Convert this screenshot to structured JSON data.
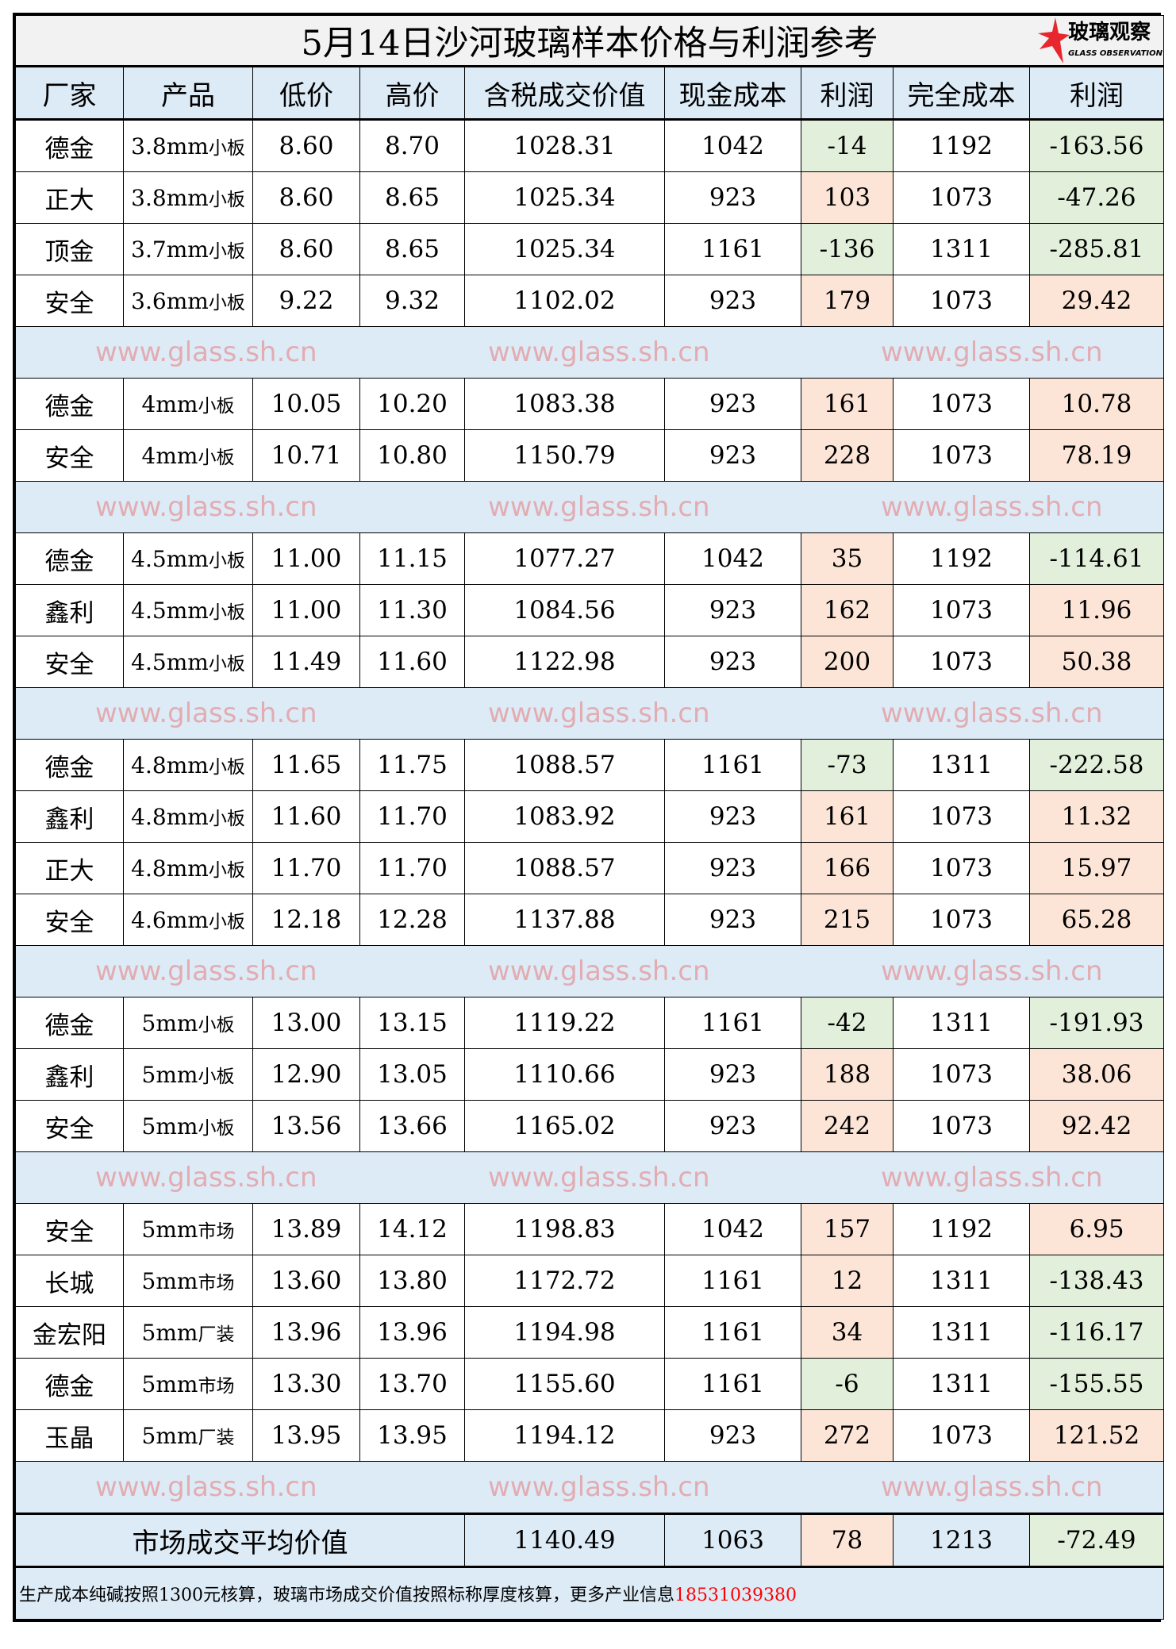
{
  "title": "5月14日沙河玻璃样本价格与利润参考",
  "logo": {
    "cn": "玻璃观察",
    "en": "GLASS OBSERVATION"
  },
  "headers": [
    "厂家",
    "产品",
    "低价",
    "高价",
    "含税成交价值",
    "现金成本",
    "利润",
    "完全成本",
    "利润"
  ],
  "groups": [
    [
      [
        "德金",
        "3.8mm",
        "小板",
        "8.60",
        "8.70",
        "1028.31",
        "1042",
        "-14",
        "1192",
        "-163.56"
      ],
      [
        "正大",
        "3.8mm",
        "小板",
        "8.60",
        "8.65",
        "1025.34",
        "923",
        "103",
        "1073",
        "-47.26"
      ],
      [
        "顶金",
        "3.7mm",
        "小板",
        "8.60",
        "8.65",
        "1025.34",
        "1161",
        "-136",
        "1311",
        "-285.81"
      ],
      [
        "安全",
        "3.6mm",
        "小板",
        "9.22",
        "9.32",
        "1102.02",
        "923",
        "179",
        "1073",
        "29.42"
      ]
    ],
    [
      [
        "德金",
        "4mm",
        "小板",
        "10.05",
        "10.20",
        "1083.38",
        "923",
        "161",
        "1073",
        "10.78"
      ],
      [
        "安全",
        "4mm",
        "小板",
        "10.71",
        "10.80",
        "1150.79",
        "923",
        "228",
        "1073",
        "78.19"
      ]
    ],
    [
      [
        "德金",
        "4.5mm",
        "小板",
        "11.00",
        "11.15",
        "1077.27",
        "1042",
        "35",
        "1192",
        "-114.61"
      ],
      [
        "鑫利",
        "4.5mm",
        "小板",
        "11.00",
        "11.30",
        "1084.56",
        "923",
        "162",
        "1073",
        "11.96"
      ],
      [
        "安全",
        "4.5mm",
        "小板",
        "11.49",
        "11.60",
        "1122.98",
        "923",
        "200",
        "1073",
        "50.38"
      ]
    ],
    [
      [
        "德金",
        "4.8mm",
        "小板",
        "11.65",
        "11.75",
        "1088.57",
        "1161",
        "-73",
        "1311",
        "-222.58"
      ],
      [
        "鑫利",
        "4.8mm",
        "小板",
        "11.60",
        "11.70",
        "1083.92",
        "923",
        "161",
        "1073",
        "11.32"
      ],
      [
        "正大",
        "4.8mm",
        "小板",
        "11.70",
        "11.70",
        "1088.57",
        "923",
        "166",
        "1073",
        "15.97"
      ],
      [
        "安全",
        "4.6mm",
        "小板",
        "12.18",
        "12.28",
        "1137.88",
        "923",
        "215",
        "1073",
        "65.28"
      ]
    ],
    [
      [
        "德金",
        "5mm",
        "小板",
        "13.00",
        "13.15",
        "1119.22",
        "1161",
        "-42",
        "1311",
        "-191.93"
      ],
      [
        "鑫利",
        "5mm",
        "小板",
        "12.90",
        "13.05",
        "1110.66",
        "923",
        "188",
        "1073",
        "38.06"
      ],
      [
        "安全",
        "5mm",
        "小板",
        "13.56",
        "13.66",
        "1165.02",
        "923",
        "242",
        "1073",
        "92.42"
      ]
    ],
    [
      [
        "安全",
        "5mm",
        "市场",
        "13.89",
        "14.12",
        "1198.83",
        "1042",
        "157",
        "1192",
        "6.95"
      ],
      [
        "长城",
        "5mm",
        "市场",
        "13.60",
        "13.80",
        "1172.72",
        "1161",
        "12",
        "1311",
        "-138.43"
      ],
      [
        "金宏阳",
        "5mm",
        "厂装",
        "13.96",
        "13.96",
        "1194.98",
        "1161",
        "34",
        "1311",
        "-116.17"
      ],
      [
        "德金",
        "5mm",
        "市场",
        "13.30",
        "13.70",
        "1155.60",
        "1161",
        "-6",
        "1311",
        "-155.55"
      ],
      [
        "玉晶",
        "5mm",
        "厂装",
        "13.95",
        "13.95",
        "1194.12",
        "923",
        "272",
        "1073",
        "121.52"
      ]
    ]
  ],
  "average": {
    "label": "市场成交平均价值",
    "value": "1140.49",
    "cash_cost": "1063",
    "profit": "78",
    "full_cost": "1213",
    "full_profit": "-72.49"
  },
  "footer": {
    "note": "生产成本纯碱按照1300元核算，玻璃市场成交价值按照标称厚度核算，更多产业信息",
    "phone": "18531039380"
  },
  "watermark": "www.glass.sh.cn",
  "colors": {
    "positive": "#fce4d6",
    "negative": "#e2efda",
    "header": "#ddebf7",
    "title": "#f2f2f2",
    "phone": "#ff0000",
    "logo_red": "#e8262d"
  }
}
